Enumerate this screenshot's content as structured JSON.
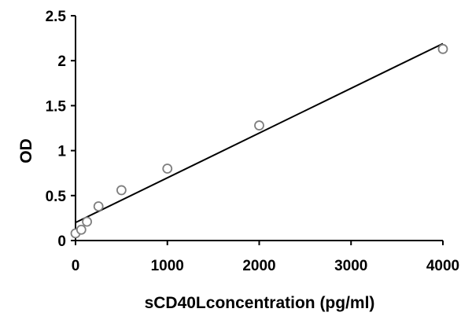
{
  "chart_data": {
    "type": "scatter",
    "title": "",
    "xlabel": "sCD40Lconcentration (pg/ml)",
    "ylabel": "OD",
    "xlim": [
      0,
      4000
    ],
    "ylim": [
      0,
      2.5
    ],
    "xticks": [
      "0",
      "1000",
      "2000",
      "3000",
      "4000"
    ],
    "yticks": [
      "0",
      "0.5",
      "1",
      "1.5",
      "2",
      "2.5"
    ],
    "grid": false,
    "series": [
      {
        "x": [
          0,
          62.5,
          125,
          250,
          500,
          1000,
          2000,
          4000
        ],
        "y": [
          0.08,
          0.12,
          0.21,
          0.38,
          0.56,
          0.8,
          1.28,
          2.13
        ]
      }
    ],
    "trendline": {
      "x": [
        0,
        4000
      ],
      "y": [
        0.2,
        2.19
      ]
    },
    "colors": {
      "marker_fill": "#ffffff",
      "marker_stroke": "#7f7f7f",
      "line": "#000000"
    }
  }
}
